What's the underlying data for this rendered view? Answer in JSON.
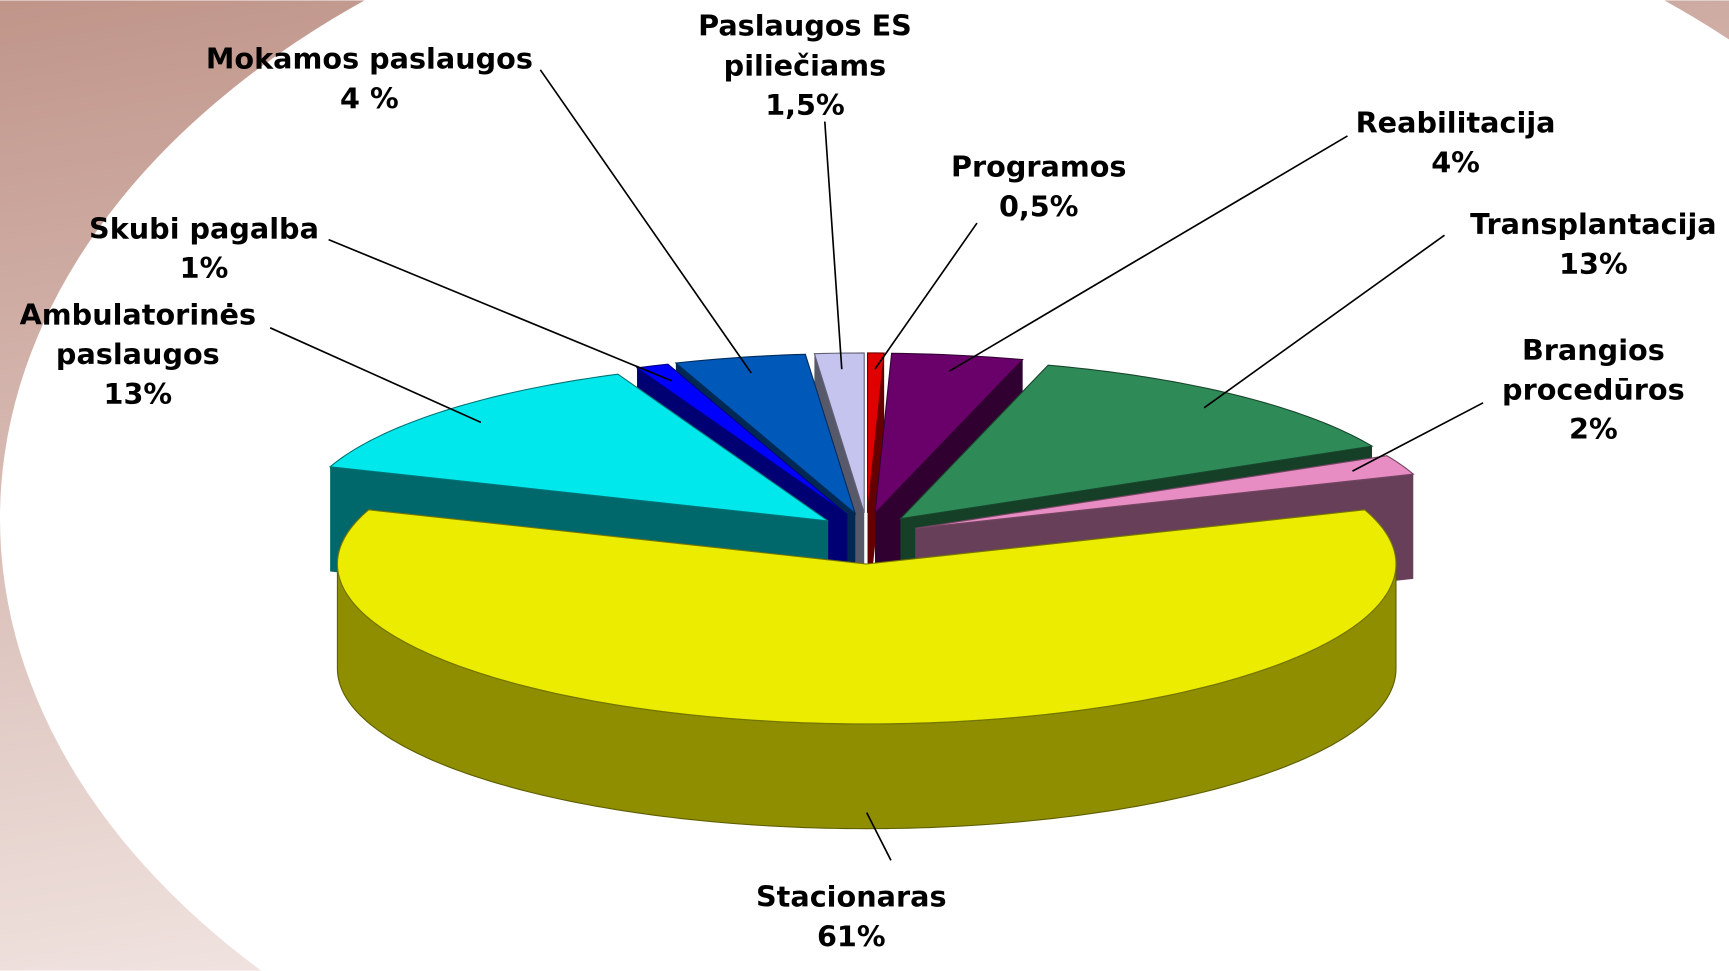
{
  "chart_data": {
    "type": "pie",
    "categories": [
      "Programos",
      "Reabilitacija",
      "Transplantacija",
      "Brangios procedūros",
      "Stacionaras",
      "Ambulatorinės paslaugos",
      "Skubi pagalba",
      "Mokamos paslaugos",
      "Paslaugos ES piliečiams"
    ],
    "values": [
      0.5,
      4,
      13,
      2,
      61,
      13,
      1,
      4,
      1.5
    ],
    "value_labels": [
      "0,5%",
      "4%",
      "13%",
      "2%",
      "61%",
      "13%",
      "1%",
      "4 %",
      "1,5%"
    ],
    "colors": [
      "#e00000",
      "#6a006a",
      "#2e8b57",
      "#e88cc4",
      "#ecec00",
      "#00e8ec",
      "#0000ff",
      "#0058b8",
      "#c4c4ee"
    ]
  }
}
